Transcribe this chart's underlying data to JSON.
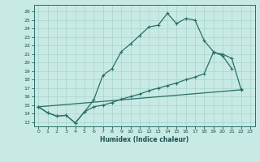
{
  "title": "",
  "xlabel": "Humidex (Indice chaleur)",
  "bg_color": "#c8eae4",
  "line_color": "#2a6e68",
  "grid_color": "#a8d4cc",
  "xlim": [
    -0.5,
    23.5
  ],
  "ylim": [
    12.5,
    26.8
  ],
  "xticks": [
    0,
    1,
    2,
    3,
    4,
    5,
    6,
    7,
    8,
    9,
    10,
    11,
    12,
    13,
    14,
    15,
    16,
    17,
    18,
    19,
    20,
    21,
    22,
    23
  ],
  "yticks": [
    13,
    14,
    15,
    16,
    17,
    18,
    19,
    20,
    21,
    22,
    23,
    24,
    25,
    26
  ],
  "line1_y": [
    14.8,
    14.1,
    13.7,
    13.8,
    12.9,
    14.2,
    15.6,
    18.5,
    19.3,
    21.3,
    22.2,
    23.2,
    24.2,
    24.4,
    25.8,
    24.6,
    25.2,
    25.0,
    22.6,
    21.3,
    20.8,
    19.3,
    null,
    null
  ],
  "line2_y": [
    14.8,
    14.1,
    13.7,
    13.8,
    12.9,
    14.2,
    14.8,
    15.0,
    15.3,
    15.7,
    16.0,
    16.3,
    16.7,
    17.0,
    17.3,
    17.6,
    18.0,
    18.3,
    18.7,
    21.2,
    21.0,
    20.5,
    16.9,
    null
  ],
  "line3_x": [
    0,
    22
  ],
  "line3_y": [
    14.8,
    16.8
  ],
  "markersize": 3,
  "linewidth": 0.9
}
